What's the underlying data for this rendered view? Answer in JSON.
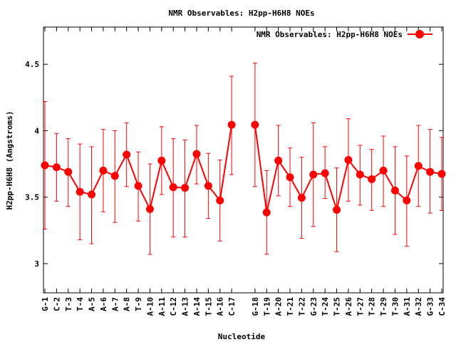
{
  "chart_data": {
    "type": "line",
    "title": "NMR Observables: H2pp-H6H8 NOEs",
    "xlabel": "Nucleotide",
    "ylabel": "H2pp-H6H8 (Angstroms)",
    "ylim": [
      2.78,
      4.78
    ],
    "yticks": [
      3,
      3.5,
      4,
      4.5
    ],
    "ytick_labels": [
      "3",
      "3.5",
      "4",
      "4.5"
    ],
    "grid": false,
    "legend_position": "top-right",
    "line_color": "#ff0000",
    "series": [
      {
        "name": "NMR Observables: H2pp-H6H8 NOEs",
        "segments": [
          {
            "categories": [
              "G-1",
              "C-2",
              "T-3",
              "T-4",
              "A-5",
              "A-6",
              "A-7",
              "A-8",
              "T-9",
              "A-10",
              "A-11",
              "C-12",
              "A-13",
              "A-14",
              "T-15",
              "A-16",
              "C-17"
            ],
            "values": [
              3.74,
              3.725,
              3.69,
              3.54,
              3.52,
              3.7,
              3.66,
              3.82,
              3.585,
              3.41,
              3.775,
              3.575,
              3.57,
              3.825,
              3.585,
              3.475,
              4.045
            ],
            "err_low": [
              3.26,
              3.47,
              3.43,
              3.18,
              3.15,
              3.39,
              3.31,
              3.58,
              3.32,
              3.07,
              3.52,
              3.2,
              3.2,
              3.6,
              3.34,
              3.17,
              3.67
            ],
            "err_high": [
              4.22,
              3.98,
              3.94,
              3.9,
              3.88,
              4.01,
              4.0,
              4.06,
              3.84,
              3.75,
              4.03,
              3.94,
              3.93,
              4.04,
              3.83,
              3.78,
              4.41
            ]
          },
          {
            "categories": [
              "G-18",
              "T-19",
              "A-20",
              "T-21",
              "T-22",
              "G-23",
              "T-24",
              "T-25",
              "A-26",
              "T-27",
              "T-28",
              "T-29",
              "T-30",
              "A-31",
              "A-32",
              "G-33",
              "C-34"
            ],
            "values": [
              4.045,
              3.385,
              3.775,
              3.65,
              3.495,
              3.67,
              3.68,
              3.405,
              3.78,
              3.67,
              3.635,
              3.7,
              3.55,
              3.475,
              3.735,
              3.69,
              3.675
            ],
            "err_low": [
              3.58,
              3.07,
              3.51,
              3.43,
              3.19,
              3.28,
              3.49,
              3.09,
              3.47,
              3.44,
              3.4,
              3.43,
              3.22,
              3.13,
              3.43,
              3.38,
              3.4
            ],
            "err_high": [
              4.51,
              3.7,
              4.04,
              3.87,
              3.8,
              4.06,
              3.88,
              3.72,
              4.09,
              3.89,
              3.86,
              3.96,
              3.88,
              3.81,
              4.04,
              4.01,
              3.95
            ]
          }
        ]
      }
    ]
  }
}
